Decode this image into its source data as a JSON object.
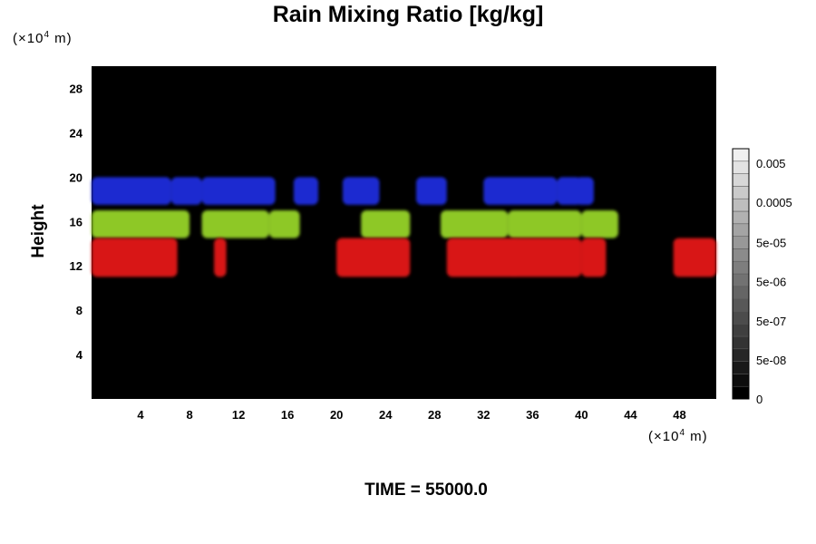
{
  "chart_data": {
    "type": "heatmap",
    "title": "Rain Mixing Ratio [kg/kg]",
    "ylabel": "Height",
    "x_unit": [
      "(×10",
      "4",
      " m)"
    ],
    "y_unit": [
      "(×10",
      "4",
      " m)"
    ],
    "xlim": [
      0,
      51
    ],
    "ylim": [
      0,
      30
    ],
    "x_ticks": [
      4,
      8,
      12,
      16,
      20,
      24,
      28,
      32,
      36,
      40,
      44,
      48
    ],
    "y_ticks": [
      4,
      8,
      12,
      16,
      20,
      24,
      28
    ],
    "background": "#000000",
    "layers": [
      {
        "color": "#1a2ad0",
        "band": [
          17.5,
          20
        ],
        "x_ranges": [
          [
            0,
            6.5
          ],
          [
            6.5,
            9
          ],
          [
            9,
            15
          ],
          [
            16.5,
            18.5
          ],
          [
            20.5,
            23.5
          ],
          [
            26.5,
            29
          ],
          [
            32,
            38
          ],
          [
            38,
            40
          ],
          [
            39.5,
            41
          ]
        ]
      },
      {
        "color": "#8ec828",
        "band": [
          14.5,
          17
        ],
        "x_ranges": [
          [
            0,
            8
          ],
          [
            9,
            14.5
          ],
          [
            14.5,
            17
          ],
          [
            22,
            26
          ],
          [
            28.5,
            34
          ],
          [
            34,
            40
          ],
          [
            40,
            43
          ]
        ]
      },
      {
        "color": "#d81818",
        "band": [
          11,
          14.5
        ],
        "x_ranges": [
          [
            0,
            7
          ],
          [
            10,
            11
          ],
          [
            20,
            26
          ],
          [
            29,
            35
          ],
          [
            34,
            40
          ],
          [
            40,
            42
          ],
          [
            47.5,
            51
          ]
        ]
      }
    ],
    "colorbar": {
      "labels": [
        "0",
        "5e-08",
        "5e-07",
        "5e-06",
        "5e-05",
        "0.0005",
        "0.005"
      ],
      "levels": 20,
      "color_min": "#000000",
      "color_max": "#f0f0f0"
    }
  },
  "time_label": "TIME = 55000.0"
}
